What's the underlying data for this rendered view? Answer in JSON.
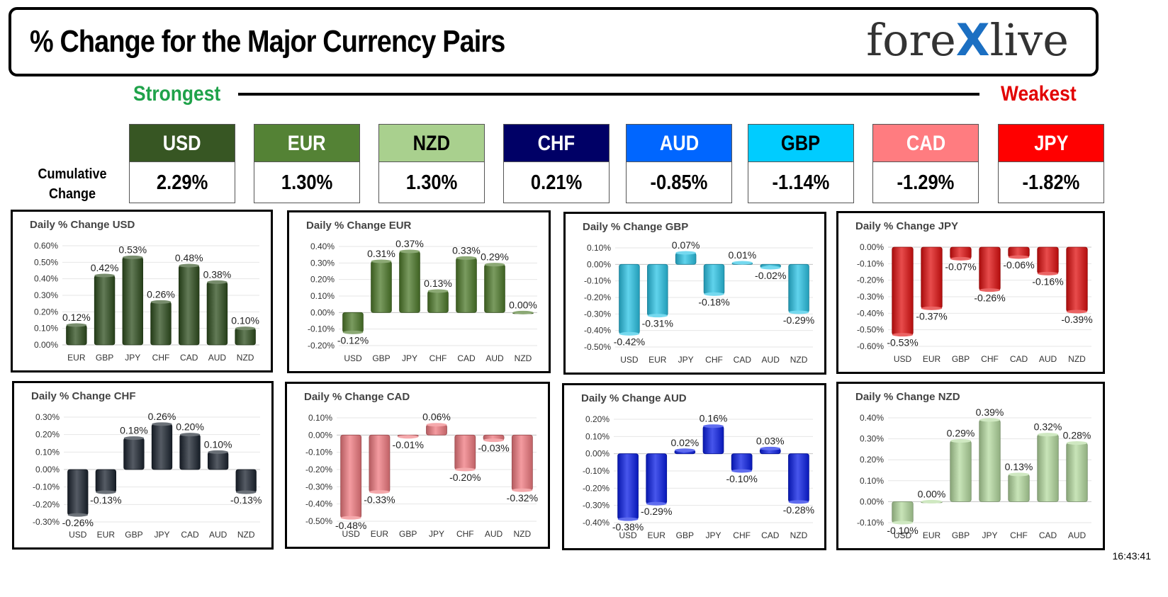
{
  "header": {
    "title": "% Change for the Major Currency Pairs",
    "logo_left": "fore",
    "logo_x": "X",
    "logo_right": "live"
  },
  "ranking": {
    "strongest_label": "Strongest",
    "weakest_label": "Weakest",
    "cumulative_label_line1": "Cumulative",
    "cumulative_label_line2": "Change",
    "currencies": [
      {
        "code": "USD",
        "value": "2.29%",
        "bg": "#375623",
        "fg": "#ffffff"
      },
      {
        "code": "EUR",
        "value": "1.30%",
        "bg": "#548235",
        "fg": "#ffffff"
      },
      {
        "code": "NZD",
        "value": "1.30%",
        "bg": "#a9d08e",
        "fg": "#000000"
      },
      {
        "code": "CHF",
        "value": "0.21%",
        "bg": "#000066",
        "fg": "#ffffff"
      },
      {
        "code": "AUD",
        "value": "-0.85%",
        "bg": "#0066ff",
        "fg": "#ffffff"
      },
      {
        "code": "GBP",
        "value": "-1.14%",
        "bg": "#00ccff",
        "fg": "#000000"
      },
      {
        "code": "CAD",
        "value": "-1.29%",
        "bg": "#ff7c80",
        "fg": "#ffffff"
      },
      {
        "code": "JPY",
        "value": "-1.82%",
        "bg": "#ff0000",
        "fg": "#ffffff"
      }
    ]
  },
  "timestamp": "16:43:41",
  "chart_data": [
    {
      "type": "bar",
      "title": "Daily % Change USD",
      "color": "#2f4f1f",
      "categories": [
        "EUR",
        "GBP",
        "JPY",
        "CHF",
        "CAD",
        "AUD",
        "NZD"
      ],
      "values": [
        0.12,
        0.42,
        0.53,
        0.26,
        0.48,
        0.38,
        0.1
      ],
      "labels": [
        "0.12%",
        "0.42%",
        "0.53%",
        "0.26%",
        "0.48%",
        "0.38%",
        "0.10%"
      ],
      "yticks": [
        0.0,
        0.1,
        0.2,
        0.3,
        0.4,
        0.5,
        0.6
      ],
      "ytick_labels": [
        "0.00%",
        "0.10%",
        "0.20%",
        "0.30%",
        "0.40%",
        "0.50%",
        "0.60%"
      ],
      "ylim": [
        0.0,
        0.6
      ]
    },
    {
      "type": "bar",
      "title": "Daily % Change EUR",
      "color": "#4e7a2b",
      "categories": [
        "USD",
        "GBP",
        "JPY",
        "CHF",
        "CAD",
        "AUD",
        "NZD"
      ],
      "values": [
        -0.12,
        0.31,
        0.37,
        0.13,
        0.33,
        0.29,
        0.0
      ],
      "labels": [
        "-0.12%",
        "0.31%",
        "0.37%",
        "0.13%",
        "0.33%",
        "0.29%",
        "0.00%"
      ],
      "yticks": [
        -0.2,
        -0.1,
        0.0,
        0.1,
        0.2,
        0.3,
        0.4
      ],
      "ytick_labels": [
        "-0.20%",
        "-0.10%",
        "0.00%",
        "0.10%",
        "0.20%",
        "0.30%",
        "0.40%"
      ],
      "ylim": [
        -0.2,
        0.4
      ]
    },
    {
      "type": "bar",
      "title": "Daily % Change GBP",
      "color": "#2bc4e6",
      "categories": [
        "USD",
        "EUR",
        "JPY",
        "CHF",
        "CAD",
        "AUD",
        "NZD"
      ],
      "values": [
        -0.42,
        -0.31,
        0.07,
        -0.18,
        0.01,
        -0.02,
        -0.29
      ],
      "labels": [
        "-0.42%",
        "-0.31%",
        "0.07%",
        "-0.18%",
        "0.01%",
        "-0.02%",
        "-0.29%"
      ],
      "yticks": [
        -0.5,
        -0.4,
        -0.3,
        -0.2,
        -0.1,
        0.0,
        0.1
      ],
      "ytick_labels": [
        "-0.50%",
        "-0.40%",
        "-0.30%",
        "-0.20%",
        "-0.10%",
        "0.00%",
        "0.10%"
      ],
      "ylim": [
        -0.5,
        0.1
      ]
    },
    {
      "type": "bar",
      "title": "Daily % Change JPY",
      "color": "#e01010",
      "categories": [
        "USD",
        "EUR",
        "GBP",
        "CHF",
        "CAD",
        "AUD",
        "NZD"
      ],
      "values": [
        -0.53,
        -0.37,
        -0.07,
        -0.26,
        -0.06,
        -0.16,
        -0.39
      ],
      "labels": [
        "-0.53%",
        "-0.37%",
        "-0.07%",
        "-0.26%",
        "-0.06%",
        "-0.16%",
        "-0.39%"
      ],
      "yticks": [
        -0.6,
        -0.5,
        -0.4,
        -0.3,
        -0.2,
        -0.1,
        0.0
      ],
      "ytick_labels": [
        "-0.60%",
        "-0.50%",
        "-0.40%",
        "-0.30%",
        "-0.20%",
        "-0.10%",
        "0.00%"
      ],
      "ylim": [
        -0.6,
        0.0
      ]
    },
    {
      "type": "bar",
      "title": "Daily % Change CHF",
      "color": "#1c2430",
      "categories": [
        "USD",
        "EUR",
        "GBP",
        "JPY",
        "CAD",
        "AUD",
        "NZD"
      ],
      "values": [
        -0.26,
        -0.13,
        0.18,
        0.26,
        0.2,
        0.1,
        -0.13
      ],
      "labels": [
        "-0.26%",
        "-0.13%",
        "0.18%",
        "0.26%",
        "0.20%",
        "0.10%",
        "-0.13%"
      ],
      "yticks": [
        -0.3,
        -0.2,
        -0.1,
        0.0,
        0.1,
        0.2,
        0.3
      ],
      "ytick_labels": [
        "-0.30%",
        "-0.20%",
        "-0.10%",
        "0.00%",
        "0.10%",
        "0.20%",
        "0.30%"
      ],
      "ylim": [
        -0.3,
        0.3
      ]
    },
    {
      "type": "bar",
      "title": "Daily % Change CAD",
      "color": "#f07a80",
      "categories": [
        "USD",
        "EUR",
        "GBP",
        "JPY",
        "CHF",
        "AUD",
        "NZD"
      ],
      "values": [
        -0.48,
        -0.33,
        -0.01,
        0.06,
        -0.2,
        -0.03,
        -0.32
      ],
      "labels": [
        "-0.48%",
        "-0.33%",
        "-0.01%",
        "0.06%",
        "-0.20%",
        "-0.03%",
        "-0.32%"
      ],
      "yticks": [
        -0.5,
        -0.4,
        -0.3,
        -0.2,
        -0.1,
        0.0,
        0.1
      ],
      "ytick_labels": [
        "-0.50%",
        "-0.40%",
        "-0.30%",
        "-0.20%",
        "-0.10%",
        "0.00%",
        "0.10%"
      ],
      "ylim": [
        -0.5,
        0.1
      ]
    },
    {
      "type": "bar",
      "title": "Daily % Change AUD",
      "color": "#0a1ee6",
      "categories": [
        "USD",
        "EUR",
        "GBP",
        "JPY",
        "CHF",
        "CAD",
        "NZD"
      ],
      "values": [
        -0.38,
        -0.29,
        0.02,
        0.16,
        -0.1,
        0.03,
        -0.28
      ],
      "labels": [
        "-0.38%",
        "-0.29%",
        "0.02%",
        "0.16%",
        "-0.10%",
        "0.03%",
        "-0.28%"
      ],
      "yticks": [
        -0.4,
        -0.3,
        -0.2,
        -0.1,
        0.0,
        0.1,
        0.2
      ],
      "ytick_labels": [
        "-0.40%",
        "-0.30%",
        "-0.20%",
        "-0.10%",
        "0.00%",
        "0.10%",
        "0.20%"
      ],
      "ylim": [
        -0.4,
        0.2
      ]
    },
    {
      "type": "bar",
      "title": "Daily % Change NZD",
      "color": "#b5dba0",
      "categories": [
        "USD",
        "EUR",
        "GBP",
        "JPY",
        "CHF",
        "CAD",
        "AUD"
      ],
      "values": [
        -0.1,
        0.0,
        0.29,
        0.39,
        0.13,
        0.32,
        0.28
      ],
      "labels": [
        "-0.10%",
        "0.00%",
        "0.29%",
        "0.39%",
        "0.13%",
        "0.32%",
        "0.28%"
      ],
      "yticks": [
        -0.1,
        0.0,
        0.1,
        0.2,
        0.3,
        0.4
      ],
      "ytick_labels": [
        "-0.10%",
        "0.00%",
        "0.10%",
        "0.20%",
        "0.30%",
        "0.40%"
      ],
      "ylim": [
        -0.1,
        0.4
      ]
    }
  ]
}
